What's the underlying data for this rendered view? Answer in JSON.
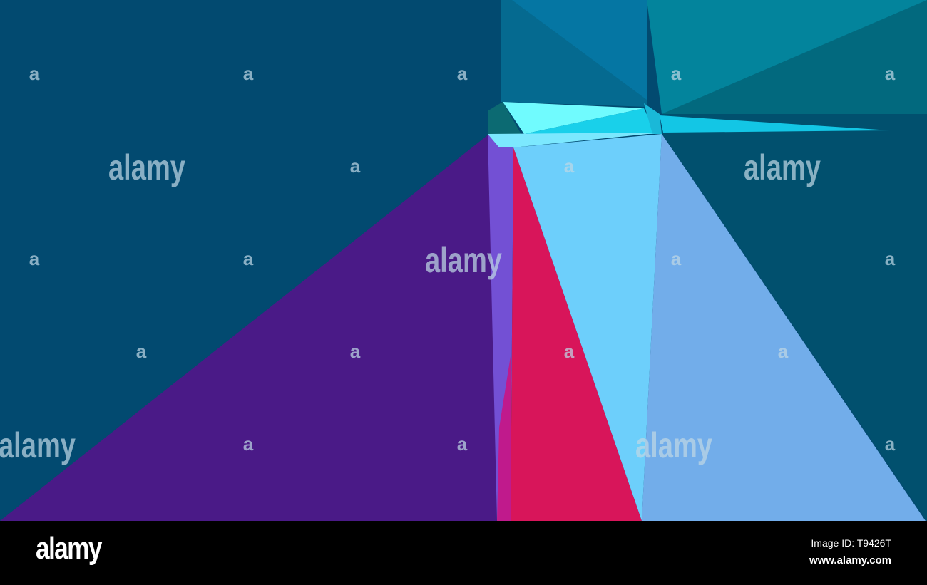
{
  "image": {
    "colors": {
      "background": "#024a70",
      "purple": "#4a1a87",
      "violet": "#7350d4",
      "red": "#d8155a",
      "sky_blue": "#6dcffb",
      "light_blue": "#72adea",
      "top_block": "#056a90",
      "top_block_light": "#0576a3",
      "teal": "#03849c",
      "dark_teal": "#02697e",
      "cyan_light": "#70fbfe",
      "cyan": "#19d0ea"
    }
  },
  "watermark": {
    "word": "alamy",
    "letter": "a"
  },
  "footer": {
    "logo": "alamy",
    "image_id": "Image ID: T9426T",
    "website": "www.alamy.com"
  }
}
